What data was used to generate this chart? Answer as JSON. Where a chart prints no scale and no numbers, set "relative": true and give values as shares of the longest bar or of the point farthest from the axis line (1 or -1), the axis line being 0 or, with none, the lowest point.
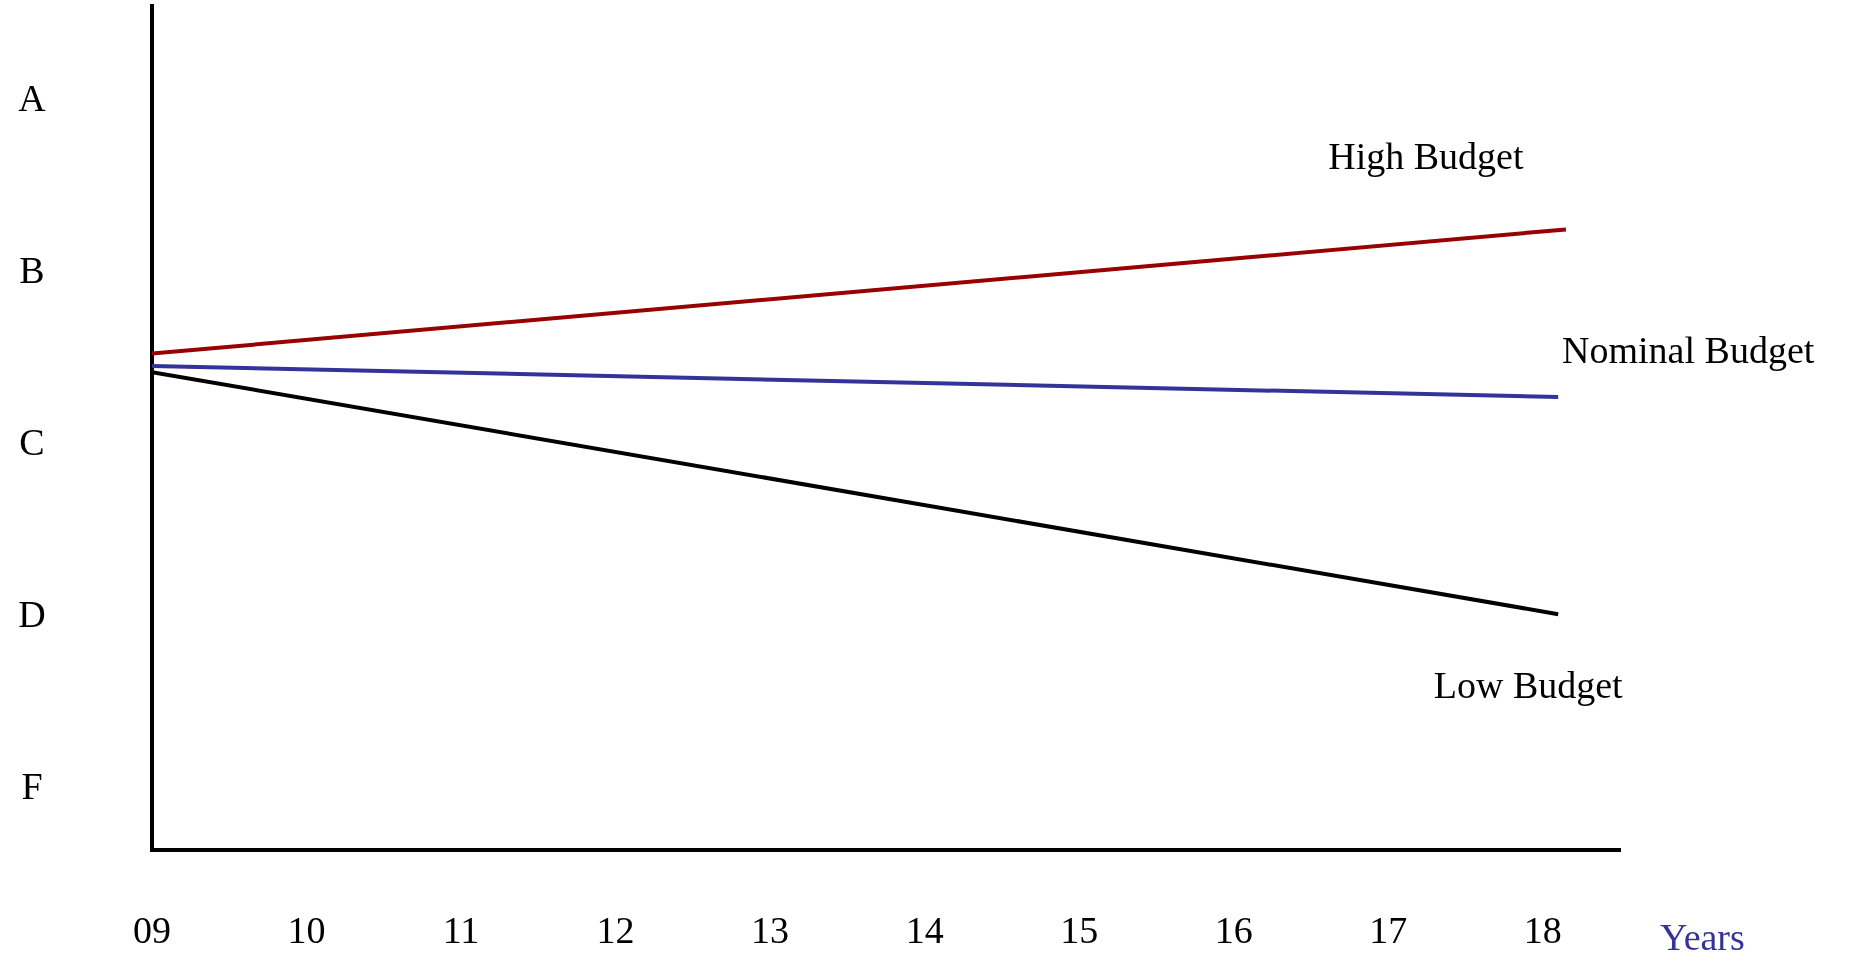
{
  "chart_data": {
    "type": "line",
    "relative": true,
    "xlabel": "Years",
    "xlim": [
      9,
      18.5
    ],
    "xticks": [
      {
        "value": 9,
        "label": "09"
      },
      10,
      11,
      12,
      13,
      14,
      15,
      16,
      17,
      18
    ],
    "annotations": [
      "A",
      "B",
      "C",
      "D",
      "F"
    ],
    "grid": false,
    "legend": false,
    "marker": "none",
    "line_style": "solid",
    "series": [
      {
        "name": "High Budget",
        "color": "#990000",
        "x": [
          9,
          18.15
        ],
        "values": [
          0.8,
          1
        ]
      },
      {
        "name": "Nominal Budget",
        "color": "#333399",
        "x": [
          9,
          18.1
        ],
        "values": [
          0.78,
          0.73
        ]
      },
      {
        "name": "Low Budget",
        "color": "#000000",
        "x": [
          9,
          18.1
        ],
        "values": [
          0.77,
          0.38
        ]
      }
    ]
  }
}
